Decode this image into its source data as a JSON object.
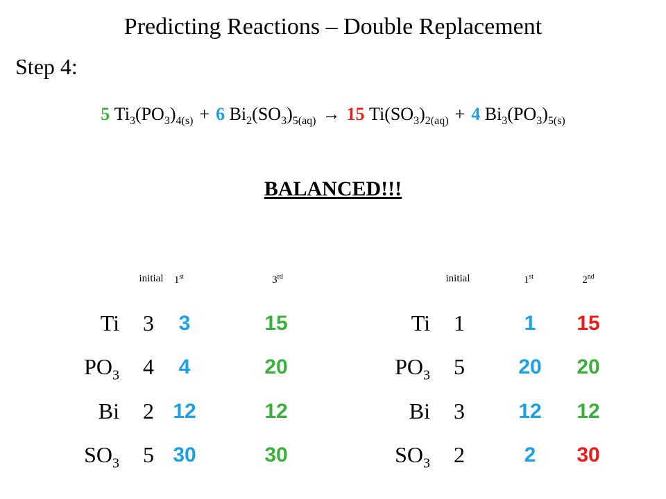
{
  "title": "Predicting Reactions – Double Replacement",
  "step": "Step 4:",
  "equation": [
    {
      "coefficient": "5",
      "color": "#3cb03c",
      "formula": [
        {
          "text": "Ti",
          "sub": "3"
        },
        {
          "text": "(PO",
          "sub": "3"
        },
        {
          "text": ")",
          "sub": "4(s)"
        }
      ]
    },
    {
      "operator": "+"
    },
    {
      "coefficient": "6",
      "color": "#1ea0e6",
      "formula": [
        {
          "text": "Bi",
          "sub": "2"
        },
        {
          "text": "(SO",
          "sub": "3"
        },
        {
          "text": ")",
          "sub": "5(aq)"
        }
      ]
    },
    {
      "operator": "→"
    },
    {
      "coefficient": "15",
      "color": "#ee1c1c",
      "formula": [
        {
          "text": "Ti(SO",
          "sub": "3"
        },
        {
          "text": ")",
          "sub": "2(aq)"
        }
      ]
    },
    {
      "operator": "+"
    },
    {
      "coefficient": "4",
      "color": "#1ea0e6",
      "formula": [
        {
          "text": "Bi",
          "sub": "3"
        },
        {
          "text": "(PO",
          "sub": "3"
        },
        {
          "text": ")",
          "sub": "5(s)"
        }
      ]
    }
  ],
  "status": "BALANCED!!!",
  "tables": [
    {
      "headers": [
        {
          "text": "initial"
        },
        {
          "text": "1",
          "sup": "st"
        },
        {
          "text": "3",
          "sup": "rd"
        }
      ],
      "rows": [
        {
          "label": [
            {
              "text": "Ti"
            }
          ],
          "values": [
            3,
            3,
            15
          ],
          "colors": [
            "#000000",
            "#1ea0e6",
            "#3cb03c"
          ]
        },
        {
          "label": [
            {
              "text": "PO",
              "sub": "3"
            }
          ],
          "values": [
            4,
            4,
            20
          ],
          "colors": [
            "#000000",
            "#1ea0e6",
            "#3cb03c"
          ]
        },
        {
          "label": [
            {
              "text": "Bi"
            }
          ],
          "values": [
            2,
            12,
            12
          ],
          "colors": [
            "#000000",
            "#1ea0e6",
            "#3cb03c"
          ]
        },
        {
          "label": [
            {
              "text": "SO",
              "sub": "3"
            }
          ],
          "values": [
            5,
            30,
            30
          ],
          "colors": [
            "#000000",
            "#1ea0e6",
            "#3cb03c"
          ]
        }
      ]
    },
    {
      "headers": [
        {
          "text": "initial"
        },
        {
          "text": "1",
          "sup": "st"
        },
        {
          "text": "2",
          "sup": "nd"
        }
      ],
      "rows": [
        {
          "label": [
            {
              "text": "Ti"
            }
          ],
          "values": [
            1,
            1,
            15
          ],
          "colors": [
            "#000000",
            "#1ea0e6",
            "#ee1c1c"
          ]
        },
        {
          "label": [
            {
              "text": "PO",
              "sub": "3"
            }
          ],
          "values": [
            5,
            20,
            20
          ],
          "colors": [
            "#000000",
            "#1ea0e6",
            "#3cb03c"
          ]
        },
        {
          "label": [
            {
              "text": "Bi"
            }
          ],
          "values": [
            3,
            12,
            12
          ],
          "colors": [
            "#000000",
            "#1ea0e6",
            "#3cb03c"
          ]
        },
        {
          "label": [
            {
              "text": "SO",
              "sub": "3"
            }
          ],
          "values": [
            2,
            2,
            30
          ],
          "colors": [
            "#000000",
            "#1ea0e6",
            "#ee1c1c"
          ]
        }
      ]
    }
  ]
}
